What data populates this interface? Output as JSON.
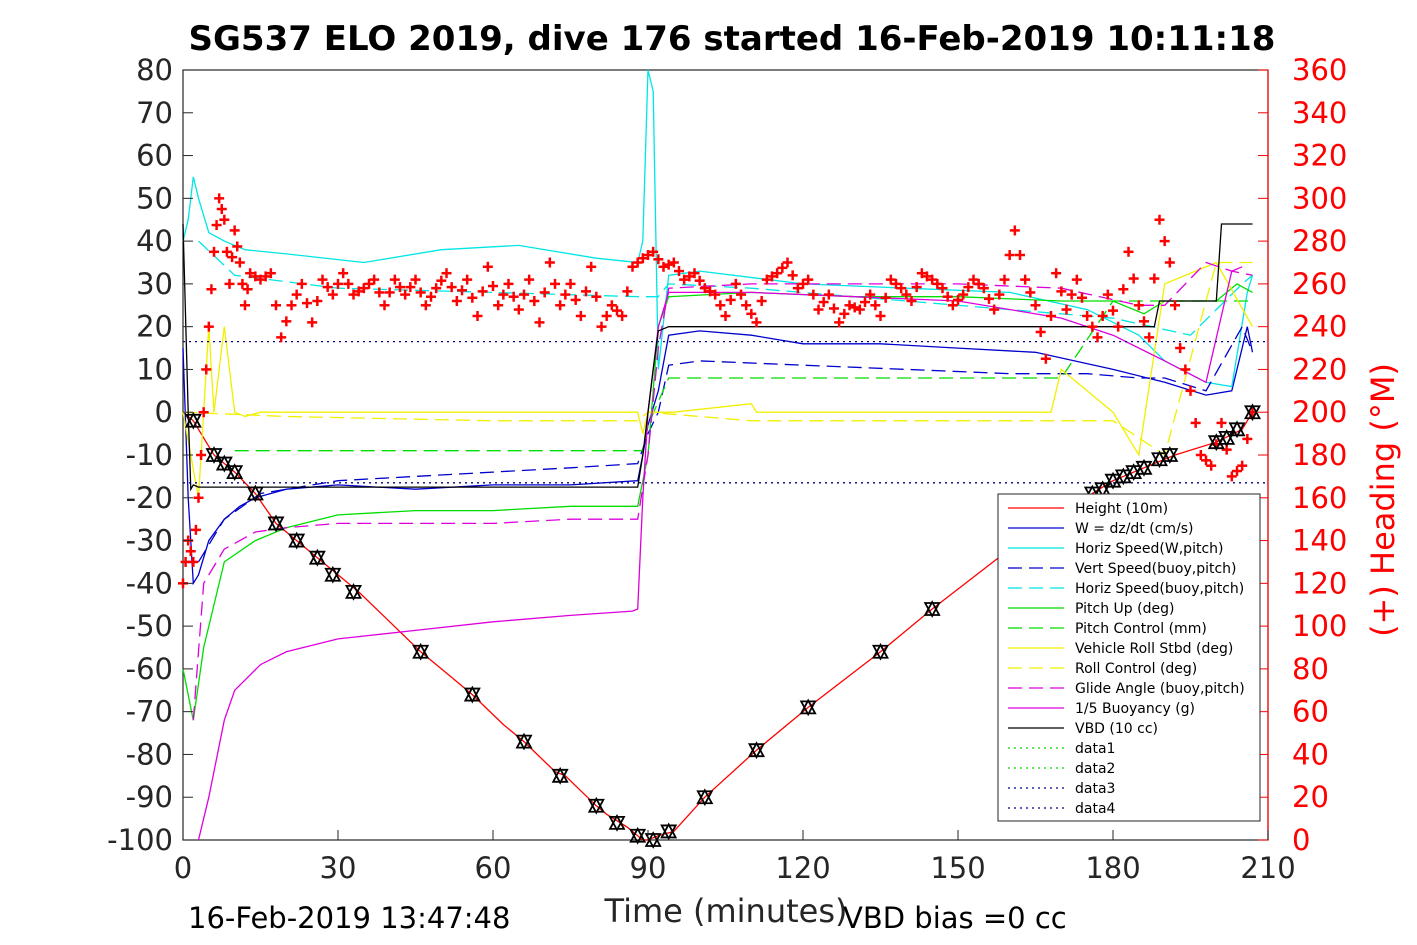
{
  "chart_data": {
    "type": "line",
    "title": "SG537 ELO 2019, dive 176 started 16-Feb-2019 10:11:18",
    "xlabel": "Time (minutes)",
    "ylabel_right": "(+) Heading (°M)",
    "xlim": [
      0,
      210
    ],
    "ylim_left": [
      -100,
      80
    ],
    "ylim_right": [
      0,
      360
    ],
    "x_ticks": [
      "0",
      "30",
      "60",
      "90",
      "120",
      "150",
      "180",
      "210"
    ],
    "y_ticks_left": [
      "80",
      "70",
      "60",
      "50",
      "40",
      "30",
      "20",
      "10",
      "0",
      "-10",
      "-20",
      "-30",
      "-40",
      "-50",
      "-60",
      "-70",
      "-80",
      "-90",
      "-100"
    ],
    "y_ticks_right": [
      "360",
      "340",
      "320",
      "300",
      "280",
      "260",
      "240",
      "220",
      "200",
      "180",
      "160",
      "140",
      "120",
      "100",
      "80",
      "60",
      "40",
      "20",
      "0"
    ],
    "footer_left": "16-Feb-2019 13:47:48",
    "footer_right": "VBD bias =0 cc",
    "legend_position": "lower-right",
    "grid": false,
    "series": [
      {
        "name": "Height (10m)",
        "color": "#ff0000",
        "style": "solid",
        "x": [
          0,
          2,
          6,
          10,
          14,
          18,
          22,
          26,
          30,
          34,
          40,
          46,
          52,
          56,
          62,
          66,
          72,
          74,
          80,
          82,
          86,
          89,
          90,
          92,
          95,
          101,
          111,
          121,
          135,
          145,
          160,
          176,
          180,
          186,
          192,
          200,
          205,
          207
        ],
        "y": [
          0,
          -2,
          -10,
          -14,
          -19,
          -26,
          -30,
          -34,
          -38,
          -42,
          -49,
          -56,
          -62,
          -66,
          -73,
          -77,
          -84,
          -85,
          -92,
          -94,
          -97,
          -100,
          -100,
          -99,
          -98,
          -90,
          -79,
          -69,
          -56,
          -46,
          -32,
          -19,
          -16,
          -13,
          -10,
          -7,
          -4,
          0
        ]
      },
      {
        "name": "W = dz/dt (cm/s)",
        "color": "#0000cd",
        "style": "solid",
        "x": [
          0,
          1,
          2,
          3,
          5,
          8,
          11,
          14,
          20,
          30,
          45,
          60,
          75,
          88,
          89,
          90,
          92,
          94,
          100,
          110,
          120,
          135,
          150,
          165,
          180,
          190,
          198,
          203,
          206,
          207
        ],
        "y": [
          15,
          -20,
          -40,
          -38,
          -30,
          -25,
          -22,
          -20,
          -18,
          -17,
          -18,
          -17,
          -17,
          -16,
          -10,
          -3,
          5,
          18,
          19,
          18,
          16,
          16,
          15,
          14,
          10,
          7,
          4,
          5,
          20,
          14
        ]
      },
      {
        "name": "Horiz Speed(W,pitch)",
        "color": "#00e5e5",
        "style": "solid",
        "x": [
          0,
          1,
          2,
          3,
          5,
          8,
          12,
          20,
          35,
          50,
          65,
          80,
          88,
          89,
          90,
          91,
          92,
          94,
          100,
          120,
          140,
          160,
          175,
          185,
          190,
          198,
          203,
          206,
          207
        ],
        "y": [
          40,
          45,
          55,
          50,
          42,
          40,
          38,
          37,
          35,
          38,
          39,
          36,
          35,
          40,
          80,
          75,
          10,
          32,
          33,
          30,
          29,
          28,
          24,
          18,
          12,
          7,
          6,
          28,
          32
        ]
      },
      {
        "name": "Vert Speed(buoy,pitch)",
        "color": "#0000cd",
        "style": "dashed",
        "x": [
          3,
          8,
          15,
          30,
          45,
          60,
          75,
          88,
          90,
          92,
          94,
          100,
          120,
          140,
          160,
          175,
          185,
          190,
          198,
          205,
          207
        ],
        "y": [
          -35,
          -25,
          -19,
          -16,
          -15,
          -14,
          -13,
          -12,
          -5,
          0,
          11,
          12,
          11,
          10,
          9,
          9,
          8,
          8,
          5,
          20,
          14
        ]
      },
      {
        "name": "Horiz Speed(buoy,pitch)",
        "color": "#00e5e5",
        "style": "dashed",
        "x": [
          3,
          10,
          30,
          60,
          88,
          90,
          92,
          94,
          110,
          140,
          160,
          180,
          195,
          205,
          207
        ],
        "y": [
          40,
          32,
          29,
          28,
          27,
          27,
          27,
          30,
          29,
          26,
          24,
          22,
          18,
          30,
          32
        ]
      },
      {
        "name": "Pitch Up (deg)",
        "color": "#00dd00",
        "style": "solid",
        "x": [
          0,
          2,
          4,
          8,
          14,
          20,
          30,
          45,
          60,
          75,
          88,
          90,
          92,
          94,
          110,
          130,
          150,
          170,
          180,
          186,
          190,
          200,
          204,
          207
        ],
        "y": [
          -60,
          -72,
          -55,
          -35,
          -30,
          -27,
          -24,
          -23,
          -23,
          -22,
          -22,
          -10,
          20,
          27,
          28,
          27,
          27,
          26,
          26,
          23,
          26,
          26,
          30,
          28
        ]
      },
      {
        "name": "Pitch Control (mm)",
        "color": "#00dd00",
        "style": "dashed",
        "x": [
          10,
          89,
          90,
          94,
          130,
          170,
          180,
          186,
          190,
          207
        ],
        "y": [
          -9,
          -9,
          -3,
          8,
          8,
          8,
          26,
          26,
          26,
          26
        ]
      },
      {
        "name": "Vehicle Roll Stbd (deg)",
        "color": "#f0f000",
        "style": "solid",
        "x": [
          0,
          3,
          5,
          6,
          8,
          10,
          12,
          15,
          20,
          40,
          60,
          80,
          88,
          89,
          90,
          95,
          110,
          111,
          130,
          150,
          160,
          168,
          170,
          180,
          185,
          190,
          200,
          207
        ],
        "y": [
          0,
          -20,
          20,
          0,
          20,
          0,
          -1,
          0,
          0,
          0,
          0,
          0,
          0,
          -5,
          0,
          0,
          2,
          0,
          0,
          0,
          0,
          0,
          10,
          0,
          -10,
          30,
          35,
          20
        ]
      },
      {
        "name": "Roll Control (deg)",
        "color": "#f0f000",
        "style": "dashed",
        "x": [
          0,
          20,
          60,
          88,
          90,
          110,
          150,
          180,
          190,
          200,
          207
        ],
        "y": [
          0,
          -1,
          -2,
          -2,
          0,
          -2,
          -2,
          -2,
          -10,
          35,
          35
        ]
      },
      {
        "name": "Glide Angle (buoy,pitch)",
        "color": "#dd00dd",
        "style": "dashed",
        "x": [
          2,
          4,
          8,
          14,
          20,
          30,
          45,
          60,
          75,
          88,
          90,
          92,
          94,
          110,
          130,
          150,
          170,
          185,
          190,
          198,
          203,
          207
        ],
        "y": [
          -72,
          -40,
          -32,
          -28,
          -27,
          -26,
          -26,
          -26,
          -25,
          -25,
          -10,
          15,
          29,
          30,
          30,
          30,
          29,
          25,
          25,
          35,
          33,
          32
        ]
      },
      {
        "name": "1/5 Buoyancy (g)",
        "color": "#dd00dd",
        "style": "solid",
        "x": [
          3,
          5,
          8,
          10,
          15,
          20,
          30,
          45,
          60,
          75,
          87,
          88,
          89,
          90,
          92,
          94,
          110,
          130,
          150,
          170,
          180,
          190,
          198,
          203,
          205
        ],
        "y": [
          -100,
          -90,
          -72,
          -65,
          -59,
          -56,
          -53,
          -51,
          -49,
          -47.5,
          -46.5,
          -46,
          -20,
          0,
          20,
          28,
          28,
          27,
          26,
          22,
          18,
          12,
          7,
          33,
          34
        ]
      },
      {
        "name": "VBD (10 cc)",
        "color": "#000000",
        "style": "solid",
        "x": [
          0,
          1,
          1.5,
          2,
          3,
          5,
          20,
          50,
          70,
          88,
          89,
          90,
          91,
          92,
          94,
          100,
          140,
          160,
          178,
          185,
          188,
          189,
          200,
          201,
          207
        ],
        "y": [
          44,
          0,
          -18,
          -17,
          -17.5,
          -17.5,
          -17.5,
          -17.5,
          -17.5,
          -17.5,
          -10,
          0,
          10,
          19,
          20,
          20,
          20,
          20,
          20,
          20,
          20,
          26,
          26,
          44,
          44
        ]
      },
      {
        "name": "data1",
        "color": "#00dd00",
        "style": "dotted",
        "x": [],
        "y": []
      },
      {
        "name": "data2",
        "color": "#00dd00",
        "style": "dotted",
        "x": [],
        "y": []
      },
      {
        "name": "data3",
        "color": "#00008b",
        "style": "dotted",
        "x": [
          0,
          210
        ],
        "y": [
          16.5,
          16.5
        ]
      },
      {
        "name": "data4",
        "color": "#00008b",
        "style": "dotted",
        "x": [
          0,
          210
        ],
        "y": [
          -16.5,
          -16.5
        ]
      }
    ],
    "heading": {
      "color": "#ff0000",
      "axis": "right",
      "x": [
        0,
        1,
        2,
        3,
        4,
        5,
        6,
        7,
        8,
        9,
        10,
        11,
        12,
        13,
        15,
        17,
        19,
        21,
        23,
        25,
        27,
        29,
        31,
        33,
        35,
        37,
        39,
        41,
        43,
        45,
        47,
        49,
        51,
        53,
        55,
        57,
        59,
        61,
        63,
        65,
        67,
        69,
        71,
        73,
        75,
        77,
        79,
        81,
        83,
        85,
        87,
        89,
        91,
        93,
        95,
        97,
        99,
        101,
        103,
        105,
        107,
        109,
        111,
        113,
        115,
        117,
        119,
        121,
        123,
        125,
        127,
        129,
        131,
        133,
        135,
        137,
        139,
        141,
        143,
        145,
        147,
        149,
        151,
        153,
        155,
        157,
        159,
        161,
        163,
        165,
        167,
        169,
        171,
        173,
        175,
        177,
        179,
        181,
        183,
        185,
        187,
        189,
        191,
        193,
        195,
        197,
        199,
        201,
        203,
        205,
        207
      ],
      "y": [
        120,
        140,
        130,
        160,
        200,
        240,
        275,
        300,
        290,
        260,
        285,
        270,
        250,
        265,
        262,
        265,
        235,
        250,
        260,
        242,
        262,
        255,
        265,
        255,
        258,
        262,
        250,
        262,
        255,
        262,
        250,
        258,
        265,
        252,
        262,
        245,
        268,
        250,
        260,
        248,
        262,
        242,
        270,
        250,
        260,
        245,
        268,
        240,
        250,
        245,
        268,
        272,
        275,
        268,
        270,
        262,
        265,
        258,
        255,
        245,
        260,
        250,
        242,
        262,
        265,
        270,
        258,
        262,
        248,
        255,
        242,
        250,
        248,
        255,
        245,
        262,
        258,
        252,
        265,
        262,
        258,
        250,
        255,
        262,
        258,
        248,
        262,
        285,
        262,
        250,
        225,
        265,
        248,
        262,
        245,
        235,
        255,
        240,
        275,
        250,
        235,
        290,
        270,
        230,
        210,
        180,
        175,
        195,
        170,
        175,
        200
      ]
    },
    "markers_black": {
      "x": [
        2,
        6,
        8,
        10,
        14,
        18,
        22,
        26,
        29,
        33,
        46,
        56,
        66,
        73,
        80,
        84,
        88,
        91,
        94,
        101,
        111,
        121,
        135,
        145,
        176,
        178,
        180,
        182,
        184,
        186,
        189,
        191,
        200,
        202,
        204,
        207
      ],
      "y": [
        -2,
        -10,
        -12,
        -14,
        -19,
        -26,
        -30,
        -34,
        -38,
        -42,
        -56,
        -66,
        -77,
        -85,
        -92,
        -96,
        -99,
        -100,
        -98,
        -90,
        -79,
        -69,
        -56,
        -46,
        -19,
        -18,
        -16,
        -15,
        -14,
        -13,
        -11,
        -10,
        -7,
        -6,
        -4,
        0
      ]
    }
  }
}
